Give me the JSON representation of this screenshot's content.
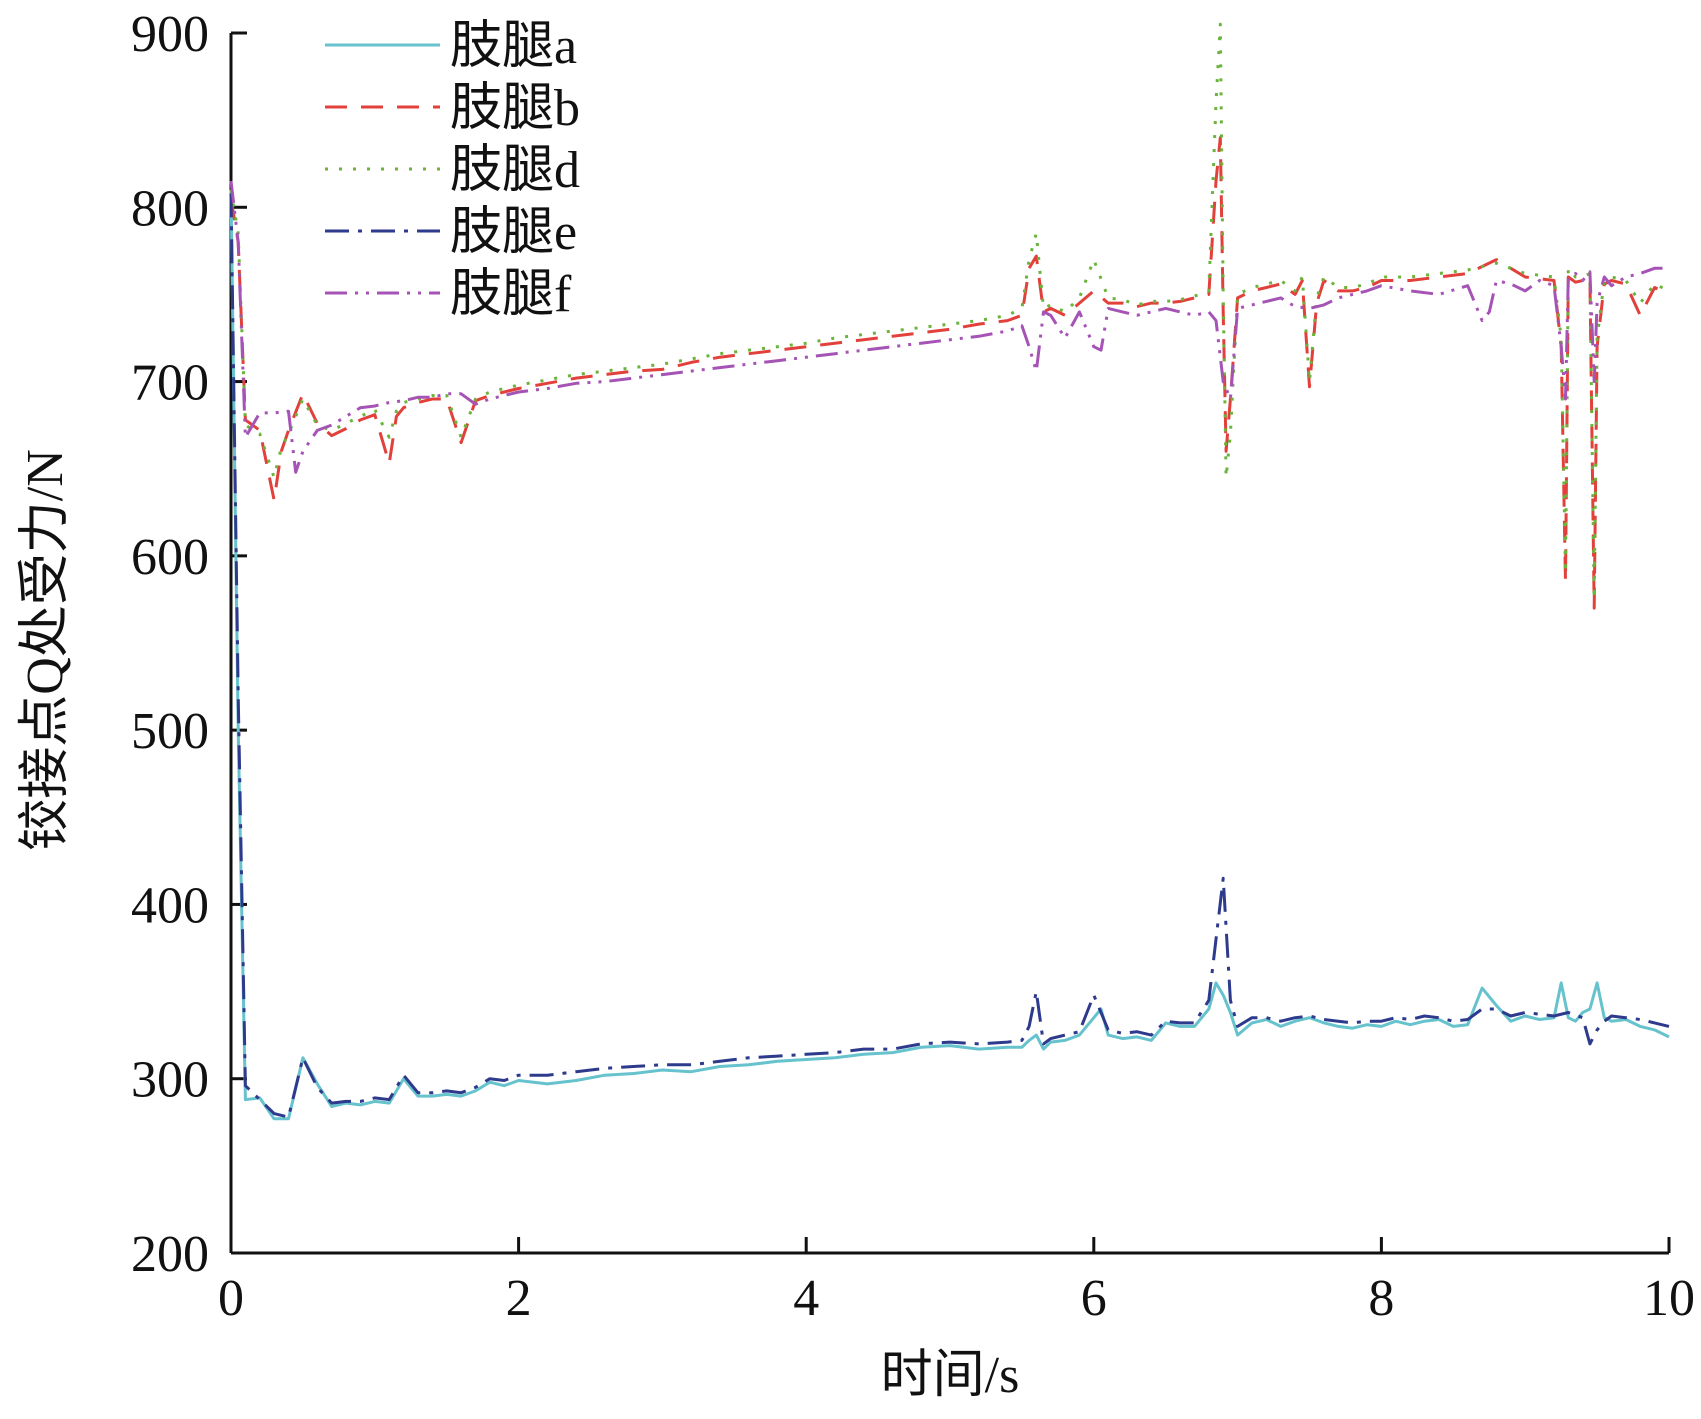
{
  "chart_data": {
    "type": "line",
    "xlabel": "时间/s",
    "ylabel": "铰接点Q处受力/N",
    "xlim": [
      0,
      10
    ],
    "ylim": [
      200,
      900
    ],
    "xticks": [
      0,
      2,
      4,
      6,
      8,
      10
    ],
    "yticks": [
      200,
      300,
      400,
      500,
      600,
      700,
      800,
      900
    ],
    "xtick_labels": [
      "0",
      "2",
      "4",
      "6",
      "8",
      "10"
    ],
    "ytick_labels": [
      "200",
      "300",
      "400",
      "500",
      "600",
      "700",
      "800",
      "900"
    ],
    "grid": false,
    "legend_position": "top-left",
    "series": [
      {
        "name": "肢腿a",
        "color": "#66c2cc",
        "dash": "solid",
        "x": [
          0,
          0.05,
          0.1,
          0.2,
          0.3,
          0.4,
          0.5,
          0.6,
          0.7,
          0.8,
          0.9,
          1.0,
          1.1,
          1.2,
          1.3,
          1.4,
          1.5,
          1.6,
          1.7,
          1.8,
          1.9,
          2.0,
          2.2,
          2.4,
          2.6,
          2.8,
          3.0,
          3.2,
          3.4,
          3.6,
          3.8,
          4.0,
          4.2,
          4.4,
          4.6,
          4.8,
          5.0,
          5.2,
          5.4,
          5.5,
          5.55,
          5.6,
          5.65,
          5.7,
          5.8,
          5.9,
          6.0,
          6.05,
          6.1,
          6.2,
          6.3,
          6.4,
          6.5,
          6.6,
          6.7,
          6.8,
          6.85,
          6.9,
          6.95,
          7.0,
          7.1,
          7.2,
          7.3,
          7.4,
          7.5,
          7.6,
          7.7,
          7.8,
          7.9,
          8.0,
          8.1,
          8.2,
          8.3,
          8.4,
          8.5,
          8.6,
          8.7,
          8.8,
          8.9,
          9.0,
          9.1,
          9.2,
          9.25,
          9.3,
          9.35,
          9.4,
          9.45,
          9.5,
          9.55,
          9.6,
          9.7,
          9.8,
          9.9,
          10.0
        ],
        "y": [
          810,
          500,
          288,
          289,
          277,
          277,
          312,
          297,
          284,
          286,
          285,
          287,
          286,
          300,
          290,
          290,
          291,
          290,
          293,
          298,
          296,
          299,
          297,
          299,
          302,
          303,
          305,
          304,
          307,
          308,
          310,
          311,
          312,
          314,
          315,
          318,
          319,
          317,
          318,
          318,
          322,
          325,
          317,
          321,
          322,
          325,
          335,
          340,
          325,
          323,
          324,
          322,
          332,
          330,
          330,
          340,
          355,
          348,
          338,
          325,
          332,
          334,
          330,
          333,
          335,
          332,
          330,
          329,
          331,
          330,
          333,
          331,
          333,
          334,
          330,
          331,
          352,
          342,
          333,
          336,
          334,
          335,
          355,
          335,
          333,
          338,
          340,
          355,
          335,
          333,
          334,
          330,
          328,
          324
        ]
      },
      {
        "name": "肢腿b",
        "color": "#e2403a",
        "dash": "22,14",
        "x": [
          0,
          0.05,
          0.1,
          0.2,
          0.3,
          0.35,
          0.4,
          0.5,
          0.6,
          0.7,
          0.8,
          0.9,
          1.0,
          1.1,
          1.15,
          1.2,
          1.3,
          1.4,
          1.5,
          1.6,
          1.7,
          1.8,
          1.9,
          2.0,
          2.2,
          2.4,
          2.6,
          2.8,
          3.0,
          3.2,
          3.4,
          3.6,
          3.8,
          4.0,
          4.2,
          4.4,
          4.6,
          4.8,
          5.0,
          5.2,
          5.4,
          5.5,
          5.55,
          5.6,
          5.65,
          5.7,
          5.8,
          5.9,
          6.0,
          6.1,
          6.2,
          6.3,
          6.4,
          6.5,
          6.6,
          6.7,
          6.8,
          6.85,
          6.88,
          6.9,
          6.92,
          6.95,
          7.0,
          7.1,
          7.2,
          7.3,
          7.4,
          7.45,
          7.5,
          7.55,
          7.6,
          7.7,
          7.8,
          7.9,
          8.0,
          8.2,
          8.4,
          8.6,
          8.8,
          9.0,
          9.2,
          9.25,
          9.28,
          9.3,
          9.35,
          9.4,
          9.45,
          9.48,
          9.5,
          9.55,
          9.6,
          9.7,
          9.8,
          9.9,
          10.0
        ],
        "y": [
          805,
          780,
          678,
          672,
          632,
          660,
          672,
          693,
          676,
          669,
          673,
          678,
          681,
          653,
          680,
          685,
          688,
          690,
          690,
          665,
          689,
          692,
          694,
          696,
          699,
          702,
          704,
          706,
          707,
          711,
          714,
          716,
          718,
          720,
          722,
          724,
          726,
          728,
          730,
          733,
          735,
          738,
          765,
          772,
          740,
          742,
          738,
          745,
          752,
          745,
          745,
          743,
          745,
          745,
          746,
          748,
          750,
          815,
          840,
          740,
          660,
          690,
          748,
          752,
          754,
          756,
          750,
          758,
          697,
          745,
          758,
          752,
          752,
          754,
          758,
          758,
          760,
          762,
          770,
          760,
          758,
          720,
          585,
          760,
          757,
          758,
          760,
          570,
          720,
          756,
          758,
          756,
          738,
          754,
          750
        ]
      },
      {
        "name": "肢腿d",
        "color": "#6ab43b",
        "dash": "3,11",
        "x": [
          0,
          0.05,
          0.1,
          0.2,
          0.3,
          0.35,
          0.4,
          0.5,
          0.6,
          0.7,
          0.8,
          0.9,
          1.0,
          1.1,
          1.15,
          1.2,
          1.3,
          1.4,
          1.5,
          1.6,
          1.7,
          1.8,
          1.9,
          2.0,
          2.2,
          2.4,
          2.6,
          2.8,
          3.0,
          3.2,
          3.4,
          3.6,
          3.8,
          4.0,
          4.2,
          4.4,
          4.6,
          4.8,
          5.0,
          5.2,
          5.4,
          5.5,
          5.55,
          5.6,
          5.65,
          5.7,
          5.8,
          5.9,
          6.0,
          6.1,
          6.2,
          6.3,
          6.4,
          6.5,
          6.6,
          6.7,
          6.8,
          6.85,
          6.88,
          6.9,
          6.92,
          6.95,
          7.0,
          7.1,
          7.2,
          7.3,
          7.4,
          7.45,
          7.5,
          7.55,
          7.6,
          7.7,
          7.8,
          7.9,
          8.0,
          8.2,
          8.4,
          8.6,
          8.8,
          9.0,
          9.2,
          9.25,
          9.28,
          9.3,
          9.35,
          9.4,
          9.45,
          9.48,
          9.5,
          9.55,
          9.6,
          9.7,
          9.8,
          9.9,
          10.0
        ],
        "y": [
          810,
          785,
          675,
          670,
          645,
          662,
          670,
          690,
          675,
          672,
          676,
          680,
          684,
          668,
          683,
          688,
          690,
          692,
          692,
          668,
          690,
          694,
          696,
          698,
          701,
          704,
          706,
          708,
          710,
          713,
          716,
          718,
          720,
          722,
          725,
          727,
          729,
          731,
          733,
          735,
          738,
          742,
          770,
          785,
          742,
          744,
          740,
          748,
          770,
          748,
          747,
          744,
          746,
          746,
          747,
          749,
          752,
          860,
          905,
          750,
          645,
          670,
          750,
          754,
          756,
          758,
          752,
          760,
          700,
          748,
          760,
          754,
          754,
          756,
          760,
          760,
          762,
          764,
          768,
          762,
          760,
          725,
          590,
          765,
          760,
          760,
          762,
          575,
          725,
          758,
          760,
          758,
          745,
          756,
          752
        ]
      },
      {
        "name": "肢腿e",
        "color": "#2e3a8c",
        "dash": "24,9,4,9",
        "x": [
          0,
          0.05,
          0.1,
          0.2,
          0.3,
          0.4,
          0.5,
          0.6,
          0.7,
          0.8,
          0.9,
          1.0,
          1.1,
          1.2,
          1.3,
          1.4,
          1.5,
          1.6,
          1.7,
          1.8,
          1.9,
          2.0,
          2.2,
          2.4,
          2.6,
          2.8,
          3.0,
          3.2,
          3.4,
          3.6,
          3.8,
          4.0,
          4.2,
          4.4,
          4.6,
          4.8,
          5.0,
          5.2,
          5.4,
          5.5,
          5.55,
          5.6,
          5.65,
          5.7,
          5.8,
          5.9,
          6.0,
          6.05,
          6.1,
          6.2,
          6.3,
          6.4,
          6.5,
          6.6,
          6.7,
          6.8,
          6.85,
          6.9,
          6.95,
          7.0,
          7.1,
          7.2,
          7.3,
          7.4,
          7.5,
          7.6,
          7.7,
          7.8,
          7.9,
          8.0,
          8.1,
          8.2,
          8.3,
          8.4,
          8.5,
          8.6,
          8.7,
          8.8,
          8.9,
          9.0,
          9.1,
          9.2,
          9.3,
          9.4,
          9.45,
          9.5,
          9.55,
          9.6,
          9.7,
          9.8,
          9.9,
          10.0
        ],
        "y": [
          808,
          520,
          296,
          288,
          280,
          278,
          312,
          295,
          286,
          287,
          287,
          289,
          288,
          302,
          292,
          292,
          293,
          292,
          295,
          300,
          299,
          302,
          302,
          304,
          306,
          307,
          308,
          308,
          310,
          312,
          313,
          314,
          315,
          317,
          317,
          320,
          321,
          320,
          321,
          322,
          330,
          350,
          320,
          323,
          325,
          327,
          348,
          338,
          328,
          326,
          327,
          325,
          333,
          332,
          332,
          345,
          380,
          415,
          345,
          330,
          335,
          335,
          333,
          335,
          336,
          334,
          333,
          332,
          333,
          333,
          335,
          334,
          336,
          335,
          333,
          334,
          340,
          340,
          336,
          338,
          337,
          336,
          338,
          335,
          320,
          328,
          333,
          336,
          335,
          334,
          332,
          330
        ]
      },
      {
        "name": "肢腿f",
        "color": "#a554b5",
        "dash": "22,8,3,8,3,8",
        "x": [
          0,
          0.05,
          0.1,
          0.2,
          0.3,
          0.4,
          0.45,
          0.5,
          0.6,
          0.7,
          0.8,
          0.9,
          1.0,
          1.1,
          1.2,
          1.3,
          1.4,
          1.5,
          1.6,
          1.7,
          1.8,
          1.9,
          2.0,
          2.2,
          2.4,
          2.6,
          2.8,
          3.0,
          3.2,
          3.4,
          3.6,
          3.8,
          4.0,
          4.2,
          4.4,
          4.6,
          4.8,
          5.0,
          5.2,
          5.4,
          5.5,
          5.55,
          5.6,
          5.65,
          5.7,
          5.8,
          5.9,
          6.0,
          6.05,
          6.1,
          6.2,
          6.3,
          6.4,
          6.5,
          6.6,
          6.7,
          6.8,
          6.85,
          6.9,
          6.95,
          7.0,
          7.1,
          7.2,
          7.3,
          7.4,
          7.5,
          7.6,
          7.7,
          7.8,
          7.9,
          8.0,
          8.2,
          8.4,
          8.6,
          8.7,
          8.75,
          8.8,
          8.9,
          9.0,
          9.1,
          9.2,
          9.25,
          9.28,
          9.3,
          9.35,
          9.4,
          9.45,
          9.48,
          9.5,
          9.55,
          9.6,
          9.7,
          9.8,
          9.9,
          10.0
        ],
        "y": [
          815,
          780,
          668,
          682,
          682,
          683,
          648,
          660,
          672,
          675,
          680,
          685,
          686,
          688,
          689,
          691,
          691,
          693,
          693,
          687,
          690,
          692,
          694,
          696,
          699,
          700,
          702,
          704,
          706,
          708,
          710,
          712,
          714,
          716,
          718,
          720,
          722,
          724,
          726,
          729,
          732,
          720,
          706,
          740,
          738,
          725,
          740,
          720,
          718,
          742,
          740,
          738,
          740,
          742,
          740,
          738,
          740,
          735,
          700,
          690,
          742,
          744,
          746,
          748,
          743,
          742,
          744,
          748,
          750,
          752,
          755,
          752,
          750,
          755,
          735,
          740,
          758,
          756,
          752,
          758,
          755,
          720,
          690,
          760,
          762,
          758,
          763,
          700,
          745,
          760,
          755,
          760,
          762,
          765,
          765
        ]
      }
    ]
  }
}
